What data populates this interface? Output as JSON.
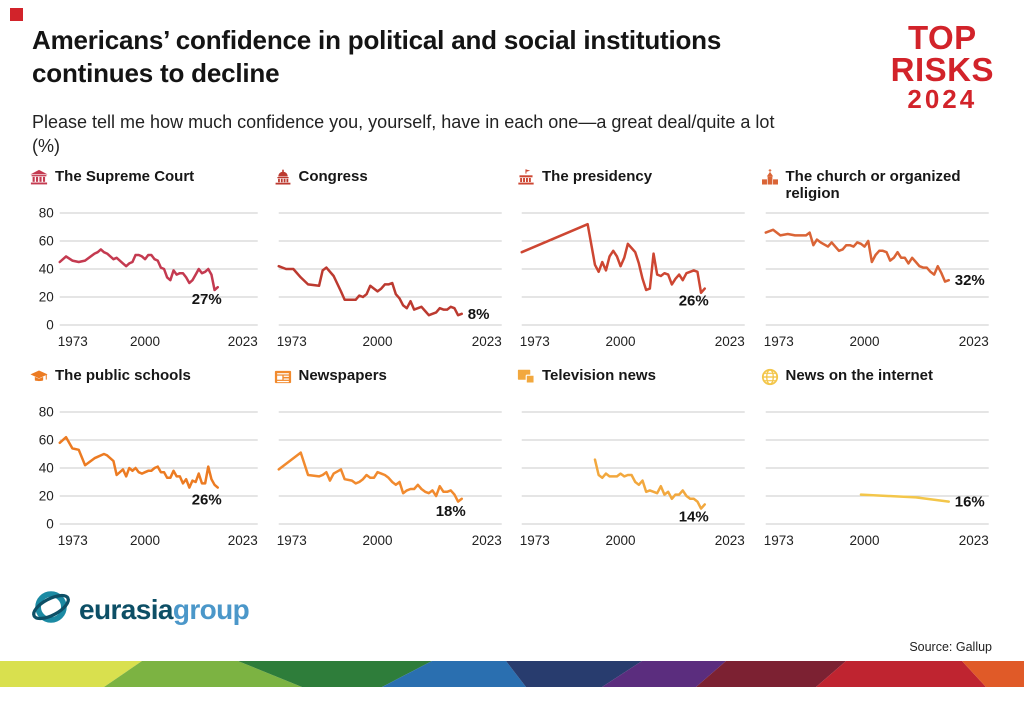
{
  "page": {
    "title": "Americans’ confidence in political and social institutions continues to decline",
    "subtitle": "Please tell me how much confidence you, yourself, have in each one—a great deal/quite a lot (%)",
    "accent_red": "#d2232a"
  },
  "top_risks": {
    "line1": "TOP",
    "line2": "RISKS",
    "line3": "2024"
  },
  "footer": {
    "source": "Source: Gallup",
    "logo_text_1": "eurasia",
    "logo_text_2": "group",
    "logo_color_1": "#0d4f66",
    "logo_color_2": "#4b97c9",
    "strip_colors": [
      "#d9e04e",
      "#7cb342",
      "#2e7d3a",
      "#2a6fb0",
      "#283c6e",
      "#5b2d7e",
      "#7c2132",
      "#bf2430",
      "#e05a28"
    ]
  },
  "chart_data": [
    {
      "type": "line",
      "title": "The Supreme Court",
      "icon": "supreme-court-icon",
      "color": "#c43a50",
      "end_label": "27%",
      "end_label_position": "below",
      "show_y_labels": true,
      "xlim": [
        1973,
        2023
      ],
      "ylim": [
        0,
        80
      ],
      "x_ticks": [
        1973,
        2000,
        2023
      ],
      "y_ticks": [
        0,
        20,
        40,
        60,
        80
      ],
      "years": [
        1973,
        1975,
        1977,
        1979,
        1981,
        1984,
        1985,
        1986,
        1987,
        1988,
        1990,
        1991,
        1993,
        1994,
        1995,
        1996,
        1997,
        1998,
        1999,
        2000,
        2001,
        2002,
        2003,
        2004,
        2005,
        2006,
        2007,
        2008,
        2009,
        2010,
        2011,
        2012,
        2013,
        2014,
        2015,
        2016,
        2017,
        2018,
        2019,
        2020,
        2021,
        2022,
        2023
      ],
      "values": [
        45,
        49,
        46,
        45,
        46,
        51,
        52,
        54,
        52,
        51,
        47,
        48,
        44,
        42,
        44,
        45,
        50,
        50,
        49,
        47,
        50,
        50,
        47,
        46,
        41,
        40,
        34,
        32,
        39,
        36,
        37,
        37,
        34,
        30,
        32,
        36,
        40,
        37,
        38,
        40,
        36,
        25,
        27
      ]
    },
    {
      "type": "line",
      "title": "Congress",
      "icon": "congress-icon",
      "color": "#bc3a30",
      "end_label": "8%",
      "end_label_position": "right",
      "show_y_labels": false,
      "xlim": [
        1973,
        2023
      ],
      "ylim": [
        0,
        80
      ],
      "x_ticks": [
        1973,
        2000,
        2023
      ],
      "y_ticks": [
        0,
        20,
        40,
        60,
        80
      ],
      "years": [
        1973,
        1975,
        1977,
        1979,
        1981,
        1984,
        1985,
        1986,
        1988,
        1990,
        1991,
        1993,
        1994,
        1995,
        1996,
        1997,
        1998,
        1999,
        2000,
        2001,
        2002,
        2003,
        2004,
        2005,
        2006,
        2007,
        2008,
        2009,
        2010,
        2011,
        2012,
        2013,
        2014,
        2015,
        2016,
        2017,
        2018,
        2019,
        2020,
        2021,
        2022,
        2023
      ],
      "values": [
        42,
        40,
        40,
        34,
        29,
        28,
        39,
        41,
        35,
        24,
        18,
        18,
        18,
        21,
        20,
        22,
        28,
        26,
        24,
        26,
        29,
        29,
        30,
        22,
        19,
        14,
        12,
        17,
        11,
        12,
        13,
        10,
        7,
        8,
        9,
        12,
        11,
        11,
        13,
        12,
        7,
        8
      ]
    },
    {
      "type": "line",
      "title": "The presidency",
      "icon": "presidency-icon",
      "color": "#cd4632",
      "end_label": "26%",
      "end_label_position": "below",
      "show_y_labels": false,
      "xlim": [
        1973,
        2023
      ],
      "ylim": [
        0,
        80
      ],
      "x_ticks": [
        1973,
        2000,
        2023
      ],
      "y_ticks": [
        0,
        20,
        40,
        60,
        80
      ],
      "years": [
        1973,
        1991,
        1993,
        1994,
        1995,
        1996,
        1997,
        1998,
        1999,
        2000,
        2001,
        2002,
        2003,
        2004,
        2005,
        2006,
        2007,
        2008,
        2009,
        2010,
        2011,
        2012,
        2013,
        2014,
        2015,
        2016,
        2017,
        2018,
        2019,
        2020,
        2021,
        2022,
        2023
      ],
      "values": [
        52,
        72,
        43,
        38,
        45,
        39,
        49,
        53,
        49,
        42,
        48,
        58,
        55,
        52,
        44,
        33,
        25,
        26,
        51,
        36,
        35,
        37,
        36,
        29,
        33,
        36,
        32,
        37,
        38,
        39,
        38,
        23,
        26
      ]
    },
    {
      "type": "line",
      "title": "The church or organized religion",
      "icon": "church-icon",
      "color": "#da6436",
      "end_label": "32%",
      "end_label_position": "right",
      "show_y_labels": false,
      "xlim": [
        1973,
        2023
      ],
      "ylim": [
        0,
        80
      ],
      "x_ticks": [
        1973,
        2000,
        2023
      ],
      "y_ticks": [
        0,
        20,
        40,
        60,
        80
      ],
      "years": [
        1973,
        1975,
        1977,
        1979,
        1981,
        1984,
        1985,
        1986,
        1987,
        1988,
        1990,
        1991,
        1993,
        1994,
        1995,
        1996,
        1997,
        1998,
        1999,
        2000,
        2001,
        2002,
        2003,
        2004,
        2005,
        2006,
        2007,
        2008,
        2009,
        2010,
        2011,
        2012,
        2013,
        2014,
        2015,
        2016,
        2017,
        2018,
        2019,
        2020,
        2021,
        2022,
        2023
      ],
      "values": [
        66,
        68,
        64,
        65,
        64,
        64,
        66,
        57,
        61,
        59,
        56,
        59,
        53,
        54,
        57,
        57,
        56,
        59,
        58,
        56,
        60,
        45,
        50,
        53,
        53,
        52,
        46,
        48,
        52,
        48,
        48,
        44,
        48,
        45,
        42,
        41,
        41,
        38,
        36,
        42,
        37,
        31,
        32
      ]
    },
    {
      "type": "line",
      "title": "The public schools",
      "icon": "public-schools-icon",
      "color": "#ec7b22",
      "end_label": "26%",
      "end_label_position": "below",
      "show_y_labels": true,
      "xlim": [
        1973,
        2023
      ],
      "ylim": [
        0,
        80
      ],
      "x_ticks": [
        1973,
        2000,
        2023
      ],
      "y_ticks": [
        0,
        20,
        40,
        60,
        80
      ],
      "years": [
        1973,
        1975,
        1977,
        1979,
        1981,
        1984,
        1985,
        1986,
        1987,
        1988,
        1990,
        1991,
        1993,
        1994,
        1995,
        1996,
        1997,
        1998,
        1999,
        2000,
        2001,
        2002,
        2003,
        2004,
        2005,
        2006,
        2007,
        2008,
        2009,
        2010,
        2011,
        2012,
        2013,
        2014,
        2015,
        2016,
        2017,
        2018,
        2019,
        2020,
        2021,
        2022,
        2023
      ],
      "values": [
        58,
        62,
        54,
        53,
        42,
        47,
        48,
        49,
        50,
        49,
        45,
        35,
        39,
        34,
        40,
        38,
        40,
        37,
        36,
        37,
        38,
        38,
        40,
        41,
        37,
        37,
        33,
        33,
        38,
        34,
        34,
        29,
        32,
        26,
        31,
        30,
        36,
        29,
        29,
        41,
        32,
        28,
        26
      ]
    },
    {
      "type": "line",
      "title": "Newspapers",
      "icon": "newspapers-icon",
      "color": "#f18a2e",
      "end_label": "18%",
      "end_label_position": "below",
      "show_y_labels": false,
      "xlim": [
        1973,
        2023
      ],
      "ylim": [
        0,
        80
      ],
      "x_ticks": [
        1973,
        2000,
        2023
      ],
      "y_ticks": [
        0,
        20,
        40,
        60,
        80
      ],
      "years": [
        1973,
        1979,
        1981,
        1984,
        1985,
        1986,
        1987,
        1988,
        1990,
        1991,
        1993,
        1994,
        1995,
        1996,
        1997,
        1998,
        1999,
        2000,
        2001,
        2002,
        2003,
        2004,
        2005,
        2006,
        2007,
        2008,
        2009,
        2010,
        2011,
        2012,
        2013,
        2014,
        2015,
        2016,
        2017,
        2018,
        2019,
        2020,
        2021,
        2022,
        2023
      ],
      "values": [
        39,
        51,
        35,
        34,
        35,
        37,
        31,
        36,
        39,
        32,
        31,
        29,
        30,
        32,
        35,
        33,
        33,
        37,
        36,
        35,
        33,
        30,
        28,
        30,
        22,
        24,
        25,
        25,
        28,
        25,
        23,
        22,
        24,
        20,
        27,
        23,
        23,
        24,
        21,
        16,
        18
      ]
    },
    {
      "type": "line",
      "title": "Television news",
      "icon": "television-news-icon",
      "color": "#f2a83e",
      "end_label": "14%",
      "end_label_position": "below",
      "show_y_labels": false,
      "xlim": [
        1973,
        2023
      ],
      "ylim": [
        0,
        80
      ],
      "x_ticks": [
        1973,
        2000,
        2023
      ],
      "y_ticks": [
        0,
        20,
        40,
        60,
        80
      ],
      "years": [
        1993,
        1994,
        1995,
        1996,
        1997,
        1998,
        1999,
        2000,
        2001,
        2002,
        2003,
        2004,
        2005,
        2006,
        2007,
        2008,
        2009,
        2010,
        2011,
        2012,
        2013,
        2014,
        2015,
        2016,
        2017,
        2018,
        2019,
        2020,
        2021,
        2022,
        2023
      ],
      "values": [
        46,
        35,
        33,
        36,
        34,
        34,
        34,
        36,
        34,
        35,
        35,
        30,
        28,
        31,
        23,
        24,
        23,
        22,
        27,
        21,
        23,
        18,
        21,
        21,
        24,
        20,
        18,
        18,
        16,
        11,
        14
      ]
    },
    {
      "type": "line",
      "title": "News on the internet",
      "icon": "internet-news-icon",
      "color": "#f3c64a",
      "end_label": "16%",
      "end_label_position": "right",
      "show_y_labels": false,
      "xlim": [
        1973,
        2023
      ],
      "ylim": [
        0,
        80
      ],
      "x_ticks": [
        1973,
        2000,
        2023
      ],
      "y_ticks": [
        0,
        20,
        40,
        60,
        80
      ],
      "years": [
        1999,
        2014,
        2023
      ],
      "values": [
        21,
        19,
        16
      ]
    }
  ]
}
